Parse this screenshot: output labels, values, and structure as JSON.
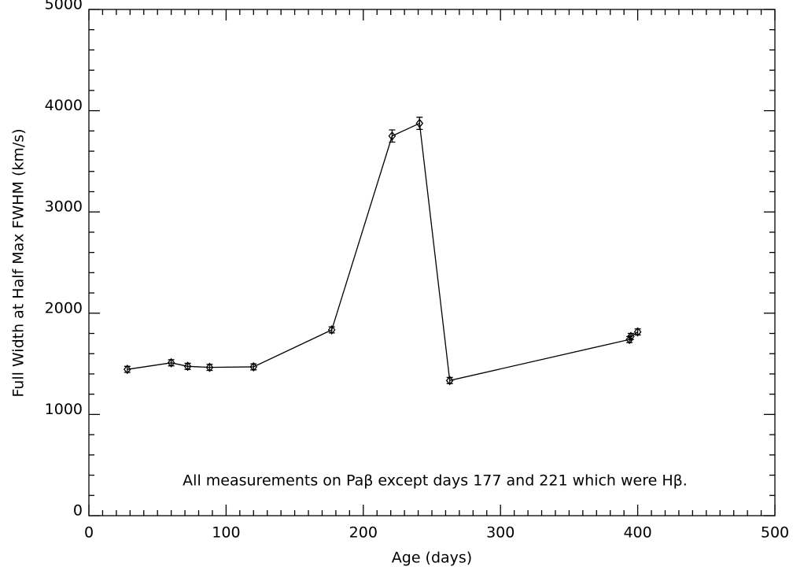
{
  "chart_data": {
    "type": "line",
    "xlabel": "Age (days)",
    "ylabel": "Full Width at Half Max FWHM (km/s)",
    "annotation": "All measurements on Paβ except days 177 and 221 which were Hβ.",
    "x": [
      28,
      60,
      72,
      88,
      120,
      177,
      221,
      241,
      263,
      394,
      395,
      400
    ],
    "series": [
      {
        "color": "#000000",
        "values": [
          1445,
          1510,
          1475,
          1465,
          1470,
          1835,
          3750,
          3875,
          1335,
          1740,
          1770,
          1815
        ],
        "errors": [
          30,
          30,
          30,
          30,
          30,
          30,
          60,
          60,
          30,
          30,
          30,
          30
        ]
      }
    ],
    "xlim": [
      0,
      500
    ],
    "xticks": [
      0,
      100,
      200,
      300,
      400,
      500
    ],
    "ylim": [
      0,
      5000
    ],
    "yticks": [
      0,
      1000,
      2000,
      3000,
      4000,
      5000
    ]
  }
}
